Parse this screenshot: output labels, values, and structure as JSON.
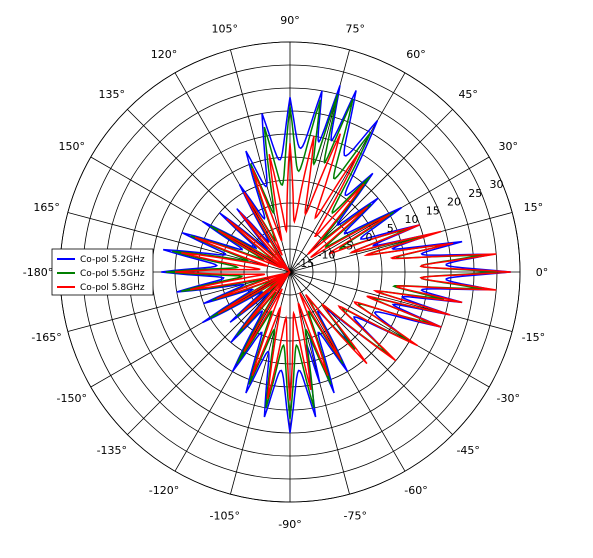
{
  "chart_data": {
    "type": "line",
    "projection": "polar",
    "angle_ticks": [
      "0°",
      "15°",
      "30°",
      "45°",
      "60°",
      "75°",
      "90°",
      "105°",
      "120°",
      "135°",
      "150°",
      "165°",
      "-180°",
      "-165°",
      "-150°",
      "-135°",
      "-120°",
      "-105°",
      "-90°",
      "-75°",
      "-60°",
      "-45°",
      "-30°",
      "-15°"
    ],
    "radial_ticks": [
      "-15",
      "-10",
      "-5",
      "0",
      "5",
      "10",
      "15",
      "20",
      "25",
      "30"
    ],
    "radial_range": [
      -20,
      30
    ],
    "legend_position": "left",
    "series": [
      {
        "name": "Co-pol 5.2GHz",
        "color": "#0000ff",
        "angle_deg": [
          -180,
          -170,
          -160,
          -150,
          -140,
          -130,
          -120,
          -110,
          -100,
          -90,
          -80,
          -75,
          -70,
          -60,
          -50,
          -40,
          -30,
          -20,
          -15,
          -10,
          -5,
          0,
          5,
          10,
          15,
          20,
          30,
          40,
          50,
          60,
          70,
          75,
          80,
          90,
          100,
          110,
          120,
          130,
          140,
          150,
          160,
          170,
          180
        ],
        "value": [
          8,
          5,
          0,
          2,
          -3,
          0,
          5,
          8,
          12,
          15,
          12,
          5,
          8,
          5,
          0,
          8,
          10,
          15,
          16,
          18,
          24,
          28,
          24,
          18,
          12,
          10,
          8,
          5,
          8,
          18,
          22,
          22,
          20,
          18,
          15,
          8,
          2,
          -2,
          0,
          2,
          5,
          8,
          8
        ]
      },
      {
        "name": "Co-pol 5.5GHz",
        "color": "#007f00",
        "angle_deg": [
          -180,
          -170,
          -160,
          -150,
          -140,
          -130,
          -120,
          -110,
          -100,
          -90,
          -80,
          -70,
          -60,
          -50,
          -40,
          -30,
          -20,
          -15,
          -10,
          -5,
          0,
          5,
          10,
          15,
          20,
          30,
          40,
          50,
          60,
          70,
          75,
          80,
          90,
          100,
          110,
          120,
          130,
          140,
          150,
          160,
          170,
          180
        ],
        "value": [
          7,
          4,
          -2,
          0,
          -5,
          -2,
          3,
          6,
          10,
          12,
          10,
          6,
          3,
          2,
          8,
          10,
          13,
          15,
          14,
          22,
          25,
          22,
          15,
          10,
          8,
          6,
          3,
          7,
          15,
          20,
          20,
          18,
          16,
          12,
          5,
          0,
          -4,
          -2,
          0,
          3,
          6,
          7
        ]
      },
      {
        "name": "Co-pol 5.8GHz",
        "color": "#ff0000",
        "angle_deg": [
          -180,
          -170,
          -160,
          -150,
          -140,
          -130,
          -120,
          -110,
          -100,
          -90,
          -80,
          -70,
          -60,
          -50,
          -40,
          -30,
          -20,
          -15,
          -10,
          -5,
          0,
          5,
          10,
          15,
          20,
          30,
          40,
          50,
          60,
          70,
          80,
          90,
          100,
          110,
          120,
          130,
          140,
          150,
          160,
          170,
          180
        ],
        "value": [
          5,
          2,
          -3,
          -2,
          -6,
          -4,
          0,
          4,
          8,
          8,
          6,
          4,
          2,
          6,
          10,
          12,
          15,
          16,
          18,
          25,
          28,
          25,
          16,
          14,
          10,
          5,
          2,
          5,
          10,
          12,
          10,
          8,
          6,
          4,
          0,
          -3,
          -2,
          -2,
          2,
          4,
          5
        ]
      }
    ]
  }
}
